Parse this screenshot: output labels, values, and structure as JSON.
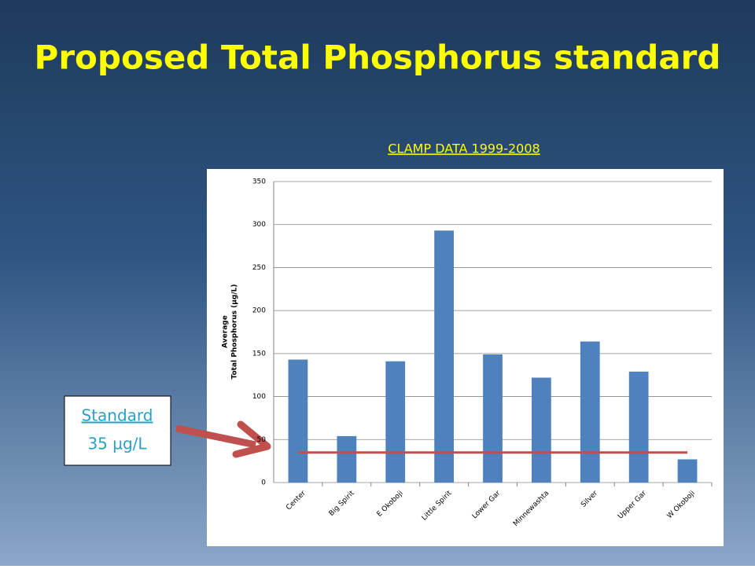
{
  "chart_data": {
    "type": "bar",
    "title": "Proposed Total Phosphorus standard",
    "subtitle": "CLAMP DATA 1999-2008",
    "ylabel": [
      "Average",
      "Total Phosphorus (µg/L)"
    ],
    "categories": [
      "Center",
      "Big Spirit",
      "E Okoboji",
      "Little Spirit",
      "Lower Gar",
      "Minnewashta",
      "Silver",
      "Upper Gar",
      "W Okoboji"
    ],
    "values": [
      143,
      54,
      141,
      293,
      149,
      122,
      164,
      129,
      27
    ],
    "color": "#4f81bd",
    "ylim": [
      0,
      350
    ],
    "yticks": [
      0,
      50,
      100,
      150,
      200,
      250,
      300,
      350
    ],
    "grid": true,
    "standard": {
      "label": "Standard",
      "value_label": "35 µg/L",
      "value": 35,
      "color": "#c0504d"
    }
  }
}
